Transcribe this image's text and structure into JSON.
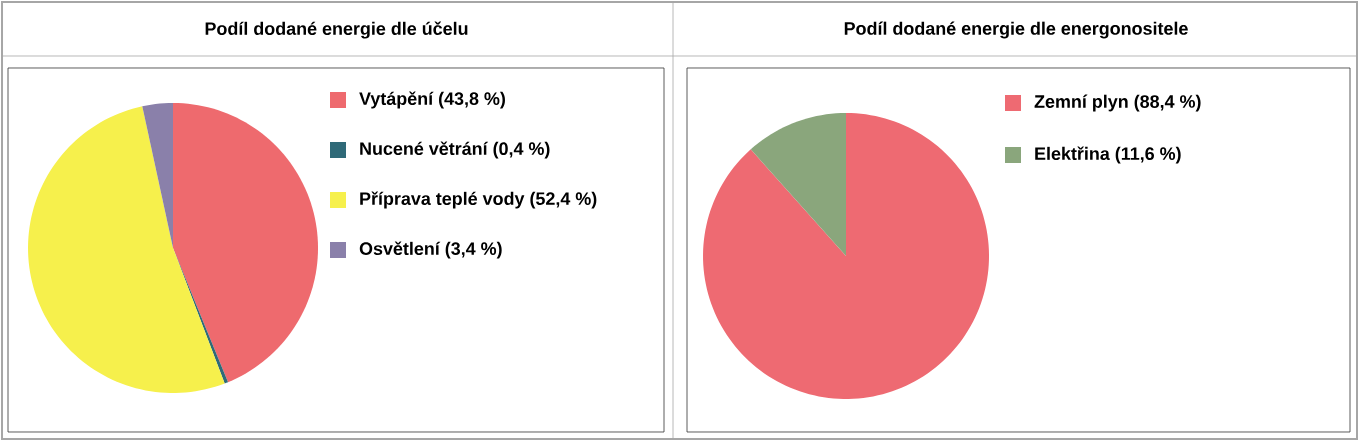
{
  "chart_data": [
    {
      "type": "pie",
      "title": "Podíl dodané energie dle účelu",
      "legend": "right",
      "categories": [
        "Vytápění (43,8 %)",
        "Nucené větrání (0,4 %)",
        "Příprava teplé vody (52,4 %)",
        "Osvětlení (3,4 %)"
      ],
      "values": [
        43.8,
        0.4,
        52.4,
        3.4
      ],
      "colors": [
        "#ee6a6e",
        "#2f6a78",
        "#f6f04c",
        "#8a80aa"
      ]
    },
    {
      "type": "pie",
      "title": "Podíl dodané energie dle energonositele",
      "legend": "right",
      "categories": [
        "Zemní plyn (88,4 %)",
        "Elektřina (11,6 %)"
      ],
      "values": [
        88.4,
        11.6
      ],
      "colors": [
        "#ee6a72",
        "#8aa67c"
      ]
    }
  ]
}
